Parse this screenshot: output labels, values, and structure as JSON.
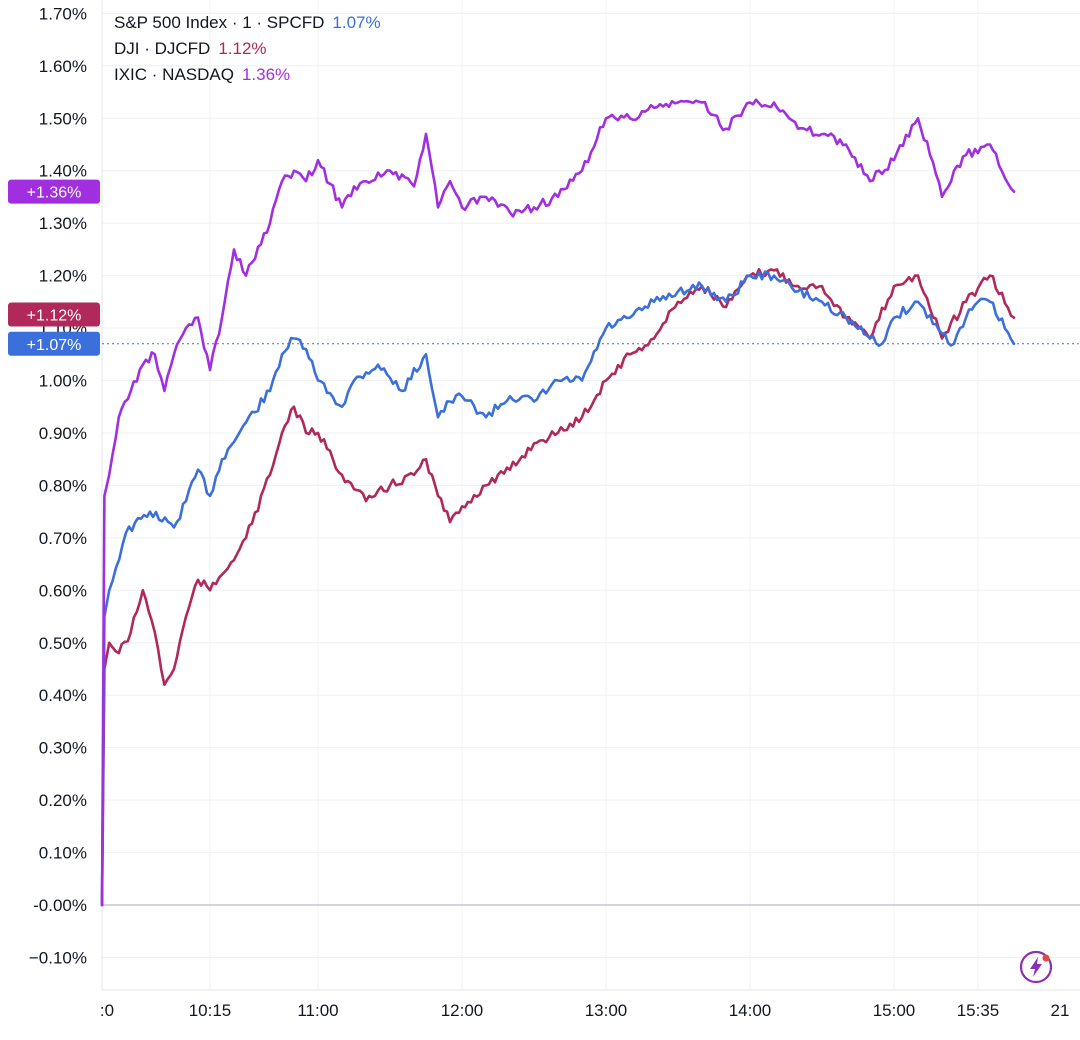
{
  "legend": [
    {
      "label": "S&P 500 Index · 1 · SPCFD",
      "value": "1.07%",
      "color": "#3b6fdc"
    },
    {
      "label": "DJI · DJCFD",
      "value": "1.12%",
      "color": "#b1285a"
    },
    {
      "label": "IXIC · NASDAQ",
      "value": "1.36%",
      "color": "#a12fe0"
    }
  ],
  "chart_data": {
    "type": "line",
    "y_unit": "%",
    "ylim": [
      -0.15,
      1.72
    ],
    "y_ticks": [
      "1.70%",
      "1.60%",
      "1.50%",
      "1.40%",
      "1.30%",
      "1.20%",
      "1.10%",
      "1.00%",
      "0.90%",
      "0.80%",
      "0.70%",
      "0.60%",
      "0.50%",
      "0.40%",
      "0.30%",
      "0.20%",
      "0.10%",
      "-0.00%",
      "−0.10%"
    ],
    "x_ticks": [
      ":0",
      "10:15",
      "11:00",
      "12:00",
      "13:00",
      "14:00",
      "15:00",
      "15:35",
      "21"
    ],
    "grid": true,
    "legend_position": "top-left",
    "series": [
      {
        "name": "S&P 500 Index · 1 · SPCFD",
        "color": "#3b6fdc",
        "last_label": "+1.07%",
        "x": [
          "09:30",
          "09:31",
          "09:33",
          "09:40",
          "09:50",
          "10:00",
          "10:05",
          "10:10",
          "10:15",
          "10:20",
          "10:30",
          "10:40",
          "10:45",
          "10:50",
          "10:55",
          "11:00",
          "11:10",
          "11:15",
          "11:25",
          "11:35",
          "11:45",
          "11:50",
          "11:55",
          "12:00",
          "12:10",
          "12:20",
          "12:30",
          "12:40",
          "12:50",
          "13:00",
          "13:10",
          "13:20",
          "13:30",
          "13:40",
          "13:50",
          "14:00",
          "14:10",
          "14:20",
          "14:30",
          "14:40",
          "14:50",
          "14:55",
          "15:00",
          "15:10",
          "15:20",
          "15:25",
          "15:30",
          "15:35",
          "15:40",
          "15:50"
        ],
        "y": [
          0.0,
          0.55,
          0.6,
          0.71,
          0.75,
          0.72,
          0.77,
          0.83,
          0.78,
          0.85,
          0.92,
          0.98,
          1.05,
          1.08,
          1.06,
          1.0,
          0.95,
          1.0,
          1.03,
          0.98,
          1.05,
          0.93,
          0.96,
          0.97,
          0.93,
          0.97,
          0.96,
          1.0,
          1.0,
          1.1,
          1.12,
          1.15,
          1.17,
          1.18,
          1.15,
          1.2,
          1.2,
          1.17,
          1.15,
          1.12,
          1.08,
          1.07,
          1.12,
          1.15,
          1.09,
          1.07,
          1.12,
          1.15,
          1.15,
          1.07
        ]
      },
      {
        "name": "DJI · DJCFD",
        "color": "#b1285a",
        "last_label": "+1.12%",
        "x": [
          "09:30",
          "09:31",
          "09:33",
          "09:37",
          "09:42",
          "09:47",
          "09:52",
          "09:56",
          "10:00",
          "10:05",
          "10:10",
          "10:15",
          "10:20",
          "10:30",
          "10:40",
          "10:45",
          "10:50",
          "10:55",
          "11:00",
          "11:10",
          "11:20",
          "11:30",
          "11:40",
          "11:45",
          "11:50",
          "11:55",
          "12:00",
          "12:10",
          "12:20",
          "12:30",
          "12:40",
          "12:50",
          "13:00",
          "13:10",
          "13:20",
          "13:30",
          "13:40",
          "13:50",
          "14:00",
          "14:10",
          "14:20",
          "14:30",
          "14:40",
          "14:50",
          "15:00",
          "15:10",
          "15:20",
          "15:30",
          "15:40",
          "15:50"
        ],
        "y": [
          0.0,
          0.45,
          0.5,
          0.48,
          0.52,
          0.6,
          0.52,
          0.42,
          0.45,
          0.55,
          0.62,
          0.6,
          0.63,
          0.7,
          0.82,
          0.9,
          0.95,
          0.9,
          0.9,
          0.82,
          0.77,
          0.8,
          0.82,
          0.85,
          0.78,
          0.73,
          0.76,
          0.8,
          0.83,
          0.88,
          0.9,
          0.93,
          1.0,
          1.05,
          1.08,
          1.15,
          1.18,
          1.14,
          1.2,
          1.21,
          1.18,
          1.18,
          1.12,
          1.08,
          1.18,
          1.2,
          1.08,
          1.15,
          1.2,
          1.12
        ]
      },
      {
        "name": "IXIC · NASDAQ",
        "color": "#a12fe0",
        "last_label": "+1.36%",
        "x": [
          "09:30",
          "09:31",
          "09:33",
          "09:37",
          "09:42",
          "09:47",
          "09:52",
          "09:56",
          "10:00",
          "10:05",
          "10:10",
          "10:15",
          "10:20",
          "10:25",
          "10:30",
          "10:40",
          "10:45",
          "10:50",
          "10:55",
          "11:00",
          "11:10",
          "11:15",
          "11:20",
          "11:30",
          "11:40",
          "11:45",
          "11:50",
          "11:55",
          "12:00",
          "12:10",
          "12:20",
          "12:30",
          "12:40",
          "12:50",
          "13:00",
          "13:10",
          "13:20",
          "13:30",
          "13:40",
          "13:50",
          "14:00",
          "14:10",
          "14:20",
          "14:30",
          "14:40",
          "14:50",
          "15:00",
          "15:10",
          "15:15",
          "15:20",
          "15:25",
          "15:30",
          "15:40",
          "15:50"
        ],
        "y": [
          0.0,
          0.78,
          0.82,
          0.93,
          0.98,
          1.03,
          1.05,
          0.98,
          1.05,
          1.1,
          1.12,
          1.02,
          1.12,
          1.25,
          1.2,
          1.3,
          1.38,
          1.4,
          1.38,
          1.42,
          1.33,
          1.37,
          1.38,
          1.4,
          1.37,
          1.47,
          1.33,
          1.38,
          1.33,
          1.35,
          1.32,
          1.33,
          1.35,
          1.4,
          1.5,
          1.5,
          1.52,
          1.53,
          1.53,
          1.48,
          1.53,
          1.53,
          1.48,
          1.47,
          1.45,
          1.38,
          1.42,
          1.5,
          1.43,
          1.35,
          1.4,
          1.43,
          1.45,
          1.36
        ]
      }
    ]
  }
}
